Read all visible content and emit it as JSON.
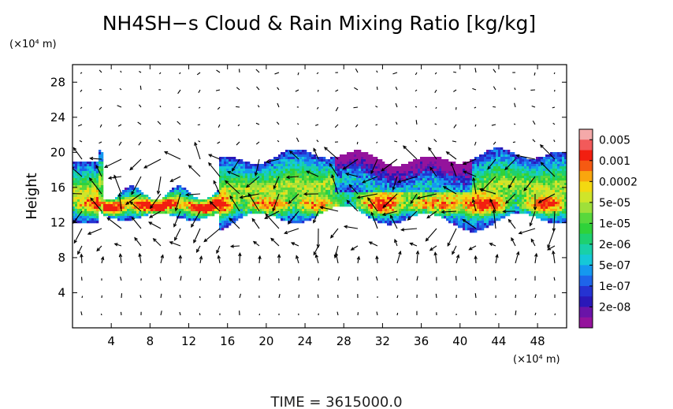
{
  "chart_data": {
    "type": "heatmap",
    "title": "NH4SH−s Cloud & Rain Mixing Ratio [kg/kg]",
    "xlabel": "",
    "x_unit": "(×10⁴ m)",
    "ylabel": "Height",
    "y_unit": "(×10⁴ m)",
    "xlim": [
      0,
      51
    ],
    "ylim": [
      0,
      30
    ],
    "x_ticks": [
      4,
      8,
      12,
      16,
      20,
      24,
      28,
      32,
      36,
      40,
      44,
      48
    ],
    "y_ticks": [
      4,
      8,
      12,
      16,
      20,
      24,
      28
    ],
    "colorbar_labels": [
      "0.005",
      "0.001",
      "0.0002",
      "5e-05",
      "1e-05",
      "2e-06",
      "5e-07",
      "1e-07",
      "2e-08"
    ],
    "colorbar_colors": [
      "#f4a9a9",
      "#f25a5a",
      "#f21f10",
      "#f55a12",
      "#f9a60e",
      "#f3d911",
      "#cfe52a",
      "#9fe03a",
      "#58d83c",
      "#2fd23a",
      "#1ed070",
      "#19d0a8",
      "#15c8d8",
      "#1598ef",
      "#1e65ea",
      "#2533d2",
      "#2a18b8",
      "#6a14a8",
      "#94139c"
    ],
    "cloud_layer": {
      "base_height": 12,
      "top_height": 20,
      "core_height": 14,
      "note_levels": "values range from 2e-08 near edges to ~0.001 in cores"
    },
    "wind_vectors": "arrows overlay on a regular grid",
    "time_label": "TIME = 3615000.0"
  }
}
